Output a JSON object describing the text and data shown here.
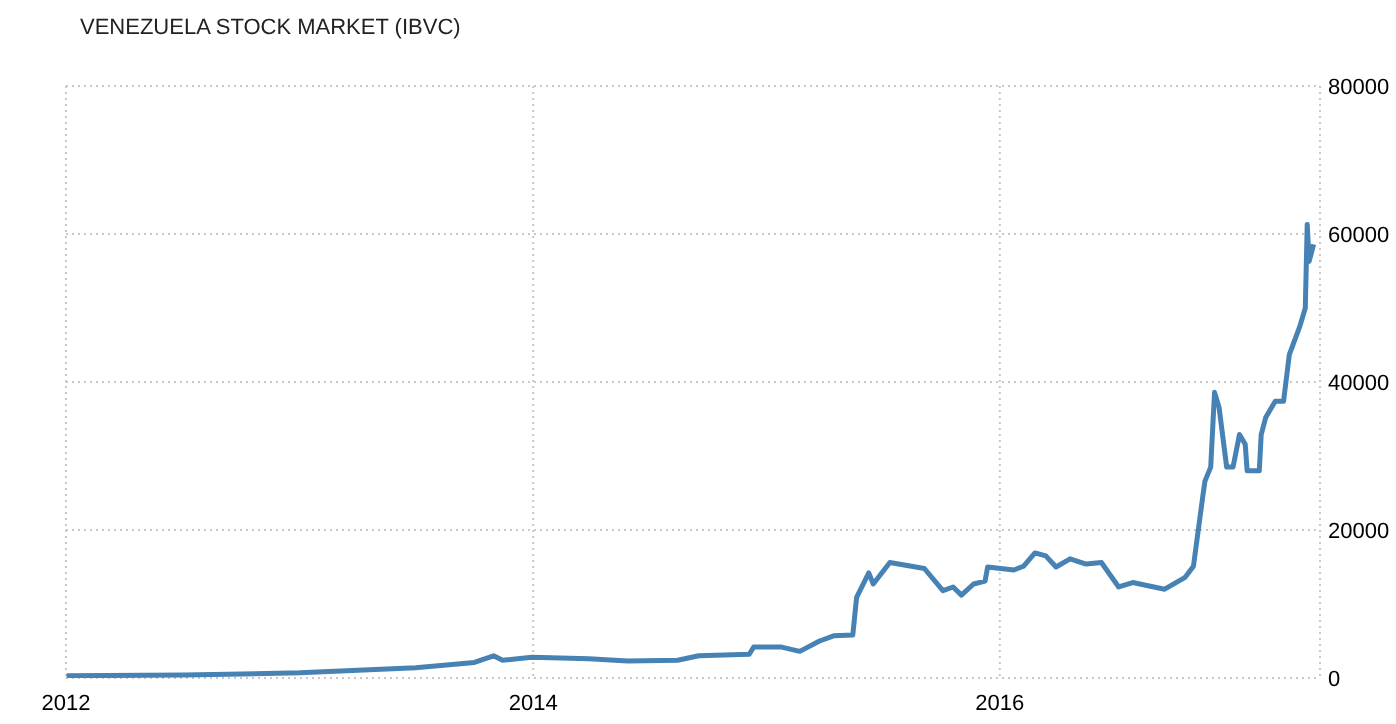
{
  "chart_data": {
    "type": "line",
    "title": "VENEZUELA STOCK MARKET (IBVC)",
    "x": [
      "2012-01-02",
      "2012-07-04",
      "2013-01-01",
      "2013-07-01",
      "2013-10-01",
      "2013-10-31",
      "2013-11-14",
      "2013-12-30",
      "2014-03-29",
      "2014-05-29",
      "2014-08-15",
      "2014-09-17",
      "2014-12-05",
      "2014-12-12",
      "2015-01-23",
      "2015-02-22",
      "2015-03-25",
      "2015-04-16",
      "2015-05-16",
      "2015-05-22",
      "2015-06-10",
      "2015-06-17",
      "2015-07-13",
      "2015-09-05",
      "2015-10-04",
      "2015-10-20",
      "2015-11-02",
      "2015-11-21",
      "2015-12-09",
      "2015-12-13",
      "2016-01-23",
      "2016-02-07",
      "2016-02-25",
      "2016-03-13",
      "2016-03-29",
      "2016-04-20",
      "2016-05-15",
      "2016-06-08",
      "2016-07-05",
      "2016-07-27",
      "2016-09-15",
      "2016-10-17",
      "2016-10-30",
      "2016-11-14",
      "2016-11-17",
      "2016-11-26",
      "2016-12-02",
      "2016-12-09",
      "2016-12-21",
      "2016-12-31",
      "2017-01-10",
      "2017-01-19",
      "2017-01-22",
      "2017-02-10",
      "2017-02-13",
      "2017-02-20",
      "2017-03-07",
      "2017-03-20",
      "2017-03-29",
      "2017-04-14",
      "2017-04-23",
      "2017-04-26",
      "2017-04-29",
      "2017-05-06"
    ],
    "series": [
      {
        "color": "#4682b4",
        "values": [
          300,
          400,
          700,
          1400,
          2100,
          3000,
          2400,
          2800,
          2600,
          2300,
          2400,
          3000,
          3200,
          4200,
          4200,
          3600,
          5000,
          5700,
          5800,
          10900,
          14200,
          12700,
          15600,
          14800,
          11800,
          12300,
          11200,
          12700,
          13100,
          15000,
          14600,
          15100,
          16900,
          16500,
          15000,
          16100,
          15400,
          15600,
          12300,
          12900,
          12000,
          13600,
          15100,
          24800,
          26600,
          28500,
          38600,
          36600,
          28500,
          28500,
          32900,
          31600,
          28000,
          28000,
          32900,
          35200,
          37400,
          37400,
          43700,
          47400,
          50000,
          61300,
          56300,
          58600
        ]
      }
    ],
    "xlim": [
      "2012-01-01",
      "2017-05-16"
    ],
    "xticks": [
      {
        "value": "2012-01-01",
        "label": "2012"
      },
      {
        "value": "2014-01-01",
        "label": "2014"
      },
      {
        "value": "2016-01-01",
        "label": "2016"
      }
    ],
    "ylim": [
      0,
      80000
    ],
    "yticks": [
      0,
      20000,
      40000,
      60000,
      80000
    ],
    "grid": true,
    "marker": "none",
    "line_style": "solid"
  }
}
